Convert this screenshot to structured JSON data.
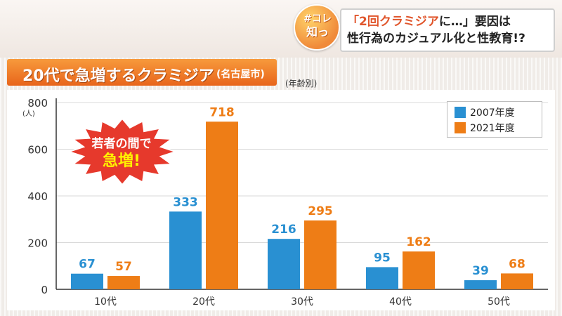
{
  "header": {
    "logo_line1": "#コレ",
    "logo_line2": "知っ",
    "headline_line1_em": "「2回クラミジア",
    "headline_line1_rest": "に…」要因は",
    "headline_line2": "性行為のカジュアル化と性教育!?"
  },
  "title_band": {
    "main": "20代で急増するクラミジア",
    "sub": "(名古屋市)"
  },
  "age_note": "(年齢別)",
  "callout": {
    "line1": "若者の間で",
    "line2": "急増!"
  },
  "colors": {
    "series_2007": "#2990d2",
    "series_2021": "#ee7d16",
    "burst": "#e6392c",
    "axis": "#333333",
    "grid": "#d8d8d8"
  },
  "chart_data": {
    "type": "bar",
    "title": "20代で急増するクラミジア",
    "ylabel": "(人)",
    "ylim": [
      0,
      800
    ],
    "yticks": [
      0,
      200,
      400,
      600,
      800
    ],
    "grid": true,
    "legend_position": "top-right",
    "categories": [
      "10代",
      "20代",
      "30代",
      "40代",
      "50代"
    ],
    "series": [
      {
        "name": "2007年度",
        "values": [
          67,
          333,
          216,
          95,
          39
        ]
      },
      {
        "name": "2021年度",
        "values": [
          57,
          718,
          295,
          162,
          68
        ]
      }
    ]
  }
}
